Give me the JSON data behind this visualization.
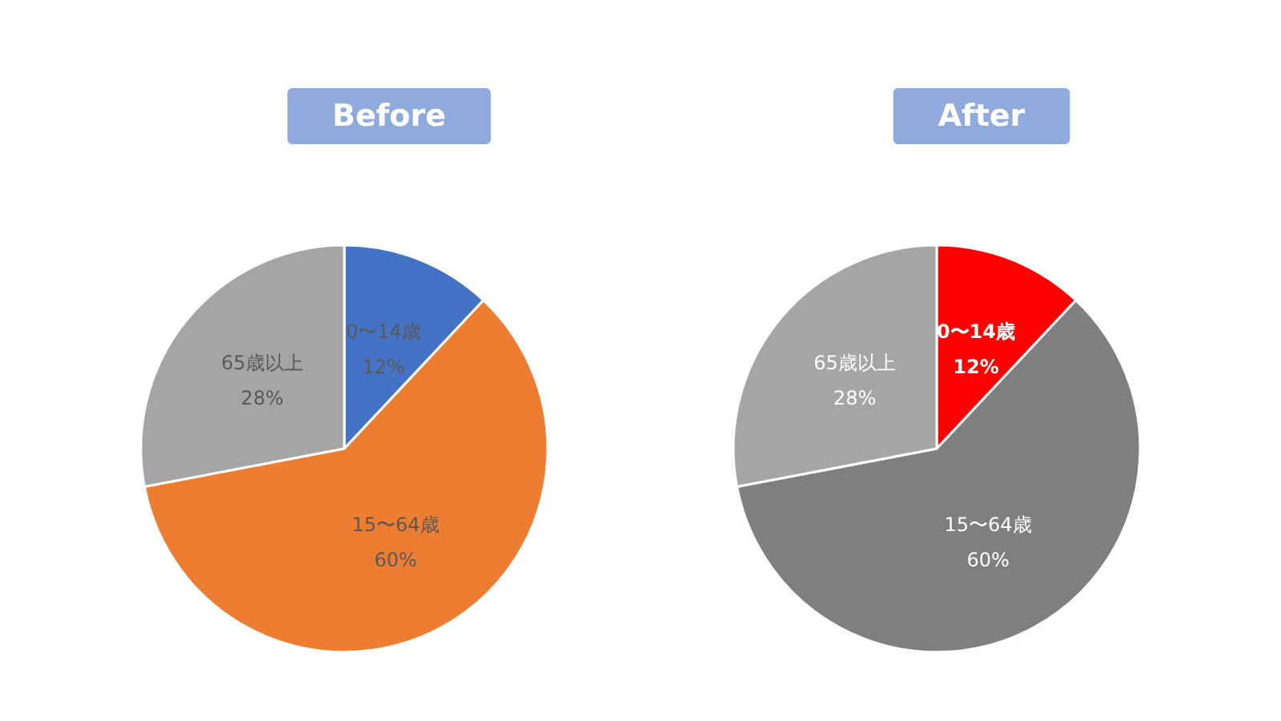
{
  "chart_data": [
    {
      "type": "pie",
      "title": "Before",
      "categories": [
        "0〜14歳",
        "15〜64歳",
        "65歳以上"
      ],
      "values": [
        12,
        60,
        28
      ],
      "colors": [
        "#4472c4",
        "#ed7d31",
        "#a5a5a5"
      ],
      "value_labels": [
        "12%",
        "60%",
        "28%"
      ],
      "legend": false
    },
    {
      "type": "pie",
      "title": "After",
      "categories": [
        "0〜14歳",
        "15〜64歳",
        "65歳以上"
      ],
      "values": [
        12,
        60,
        28
      ],
      "colors": [
        "#ff0000",
        "#7f7f7f",
        "#a5a5a5"
      ],
      "value_labels": [
        "12%",
        "60%",
        "28%"
      ],
      "legend": false
    }
  ]
}
